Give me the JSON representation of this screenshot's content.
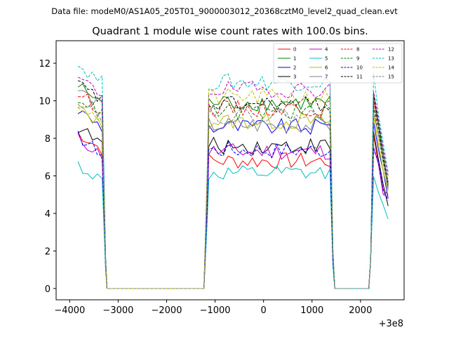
{
  "chart_data": {
    "type": "line",
    "suptitle": "Data file: modeM0/AS1A05_205T01_9000003012_20368cztM0_level2_quad_clean.evt",
    "title": "Quadrant 1 module wise count rates with 100.0s bins.",
    "xlabel": "",
    "ylabel": "",
    "offset_label": "+3e8",
    "xlim": [
      -4280,
      2900
    ],
    "ylim": [
      -0.6,
      13.2
    ],
    "xticks": [
      -4000,
      -3000,
      -2000,
      -1000,
      0,
      1000,
      2000
    ],
    "xtick_labels": [
      "−4000",
      "−3000",
      "−2000",
      "−1000",
      "0",
      "1000",
      "2000"
    ],
    "yticks": [
      0,
      2,
      4,
      6,
      8,
      10,
      12
    ],
    "ytick_labels": [
      "0",
      "2",
      "4",
      "6",
      "8",
      "10",
      "12"
    ],
    "legend_position": "top-right",
    "series": [
      {
        "name": "0",
        "color": "#ff0000",
        "dash": "solid",
        "base": 8.3,
        "gti_level": 6.8,
        "end_level": 5.0
      },
      {
        "name": "1",
        "color": "#008000",
        "dash": "solid",
        "base": 10.8,
        "gti_level": 9.9,
        "end_level": 5.5
      },
      {
        "name": "2",
        "color": "#0000ff",
        "dash": "solid",
        "base": 9.5,
        "gti_level": 8.6,
        "end_level": 4.8
      },
      {
        "name": "3",
        "color": "#000000",
        "dash": "solid",
        "base": 8.6,
        "gti_level": 7.6,
        "end_level": 4.4
      },
      {
        "name": "4",
        "color": "#bf00bf",
        "dash": "solid",
        "base": 8.0,
        "gti_level": 7.3,
        "end_level": 4.9
      },
      {
        "name": "5",
        "color": "#00bfbf",
        "dash": "solid",
        "base": 6.6,
        "gti_level": 6.1,
        "end_level": 3.7
      },
      {
        "name": "6",
        "color": "#bfbf00",
        "dash": "solid",
        "base": 9.6,
        "gti_level": 8.9,
        "end_level": 5.2
      },
      {
        "name": "7",
        "color": "#808080",
        "dash": "solid",
        "base": 10.6,
        "gti_level": 8.7,
        "end_level": 5.3
      },
      {
        "name": "8",
        "color": "#ff0000",
        "dash": "dashed",
        "base": 10.4,
        "gti_level": 9.6,
        "end_level": 5.6
      },
      {
        "name": "9",
        "color": "#008000",
        "dash": "dashed",
        "base": 10.2,
        "gti_level": 9.4,
        "end_level": 5.4
      },
      {
        "name": "10",
        "color": "#0000ff",
        "dash": "dashed",
        "base": 8.1,
        "gti_level": 7.4,
        "end_level": 4.7
      },
      {
        "name": "11",
        "color": "#000000",
        "dash": "dashed",
        "base": 10.9,
        "gti_level": 9.8,
        "end_level": 5.7
      },
      {
        "name": "12",
        "color": "#bf00bf",
        "dash": "dashed",
        "base": 11.2,
        "gti_level": 10.6,
        "end_level": 6.0
      },
      {
        "name": "13",
        "color": "#00bfbf",
        "dash": "dashed",
        "base": 11.9,
        "gti_level": 11.0,
        "end_level": 6.2
      },
      {
        "name": "14",
        "color": "#bfbf00",
        "dash": "dashed",
        "base": 9.8,
        "gti_level": 10.2,
        "end_level": 5.8
      },
      {
        "name": "15",
        "color": "#808080",
        "dash": "dashed",
        "base": 10.1,
        "gti_level": 9.2,
        "end_level": 5.3
      }
    ],
    "time_bins": {
      "segment_1": {
        "start": -3830,
        "end": -3330,
        "step": 100
      },
      "gap_1": {
        "start": -3230,
        "end": -1230
      },
      "segment_2": {
        "start": -1130,
        "end": 1370,
        "step": 100
      },
      "gap_2": {
        "start": 1470,
        "end": 2170
      },
      "segment_3": {
        "start": 2270,
        "end": 2570,
        "step": 100
      }
    }
  }
}
